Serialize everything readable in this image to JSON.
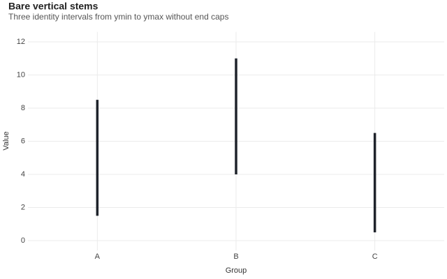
{
  "chart_data": {
    "type": "linerange",
    "title": "Bare vertical stems",
    "subtitle": "Three identity intervals from ymin to ymax without end caps",
    "x_label": "Group",
    "y_label": "Value",
    "categories": [
      "A",
      "B",
      "C"
    ],
    "ymin": [
      1.5,
      4,
      0.5
    ],
    "ymax": [
      8.5,
      11,
      6.5
    ],
    "color": "#1f232b",
    "ylim": [
      -0.6,
      12.6
    ],
    "yticks": [
      0,
      2,
      4,
      6,
      8,
      10,
      12
    ],
    "grid": true
  }
}
